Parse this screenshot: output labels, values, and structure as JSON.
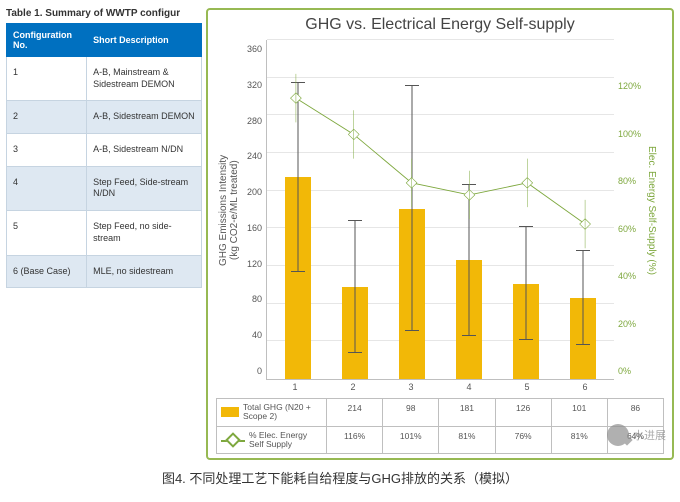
{
  "table": {
    "title": "Table 1.  Summary of WWTP configur",
    "headers": [
      "Configuration No.",
      "Short Description"
    ],
    "rows": [
      {
        "no": "1",
        "desc": "A-B, Mainstream & Sidestream DEMON",
        "stripe": false
      },
      {
        "no": "2",
        "desc": "A-B, Sidestream DEMON",
        "stripe": true
      },
      {
        "no": "3",
        "desc": "A-B, Sidestream N/DN",
        "stripe": false
      },
      {
        "no": "4",
        "desc": "Step Feed, Side-stream N/DN",
        "stripe": true
      },
      {
        "no": "5",
        "desc": "Step Feed, no side-stream",
        "stripe": false
      },
      {
        "no": "6 (Base Case)",
        "desc": "MLE, no sidestream",
        "stripe": true
      }
    ]
  },
  "chart": {
    "title": "GHG vs. Electrical Energy Self-supply",
    "title_color": "#444444",
    "title_fontsize": 16,
    "border_color": "#97b953",
    "background_color": "#ffffff",
    "grid_color": "#e6e6e6",
    "categories": [
      "1",
      "2",
      "3",
      "4",
      "5",
      "6"
    ],
    "bar": {
      "color": "#f2b807",
      "values": [
        214,
        98,
        181,
        126,
        101,
        86
      ],
      "err_low": [
        100,
        70,
        130,
        80,
        60,
        50
      ],
      "err_high": [
        100,
        70,
        130,
        80,
        60,
        50
      ],
      "ylabel": "GHG Emissions Intensity\n(kg CO2-e/ML treated)",
      "ymin": 0,
      "ymax": 360,
      "ystep": 40,
      "axis_color": "#555555",
      "label_fontsize": 10
    },
    "line": {
      "color": "#7ea83e",
      "marker_border": "#7ea83e",
      "marker_fill": "#ffffff",
      "values_pct": [
        116,
        101,
        81,
        76,
        81,
        64
      ],
      "display": [
        "116%",
        "101%",
        "81%",
        "76%",
        "81%",
        "64%"
      ],
      "ylabel": "Elec. Energy Self-Supply (%)",
      "ymin": 0,
      "ymax": 140,
      "ystep": 20,
      "yticks": [
        "0%",
        "20%",
        "40%",
        "60%",
        "80%",
        "100%",
        "120%"
      ],
      "label_fontsize": 10
    },
    "legend": {
      "bar_label": "Total GHG (N20 + Scope 2)",
      "line_label": "% Elec. Energy Self Supply"
    }
  },
  "caption": "图4. 不同处理工艺下能耗自给程度与GHG排放的关系（模拟）",
  "watermark": "水进展"
}
